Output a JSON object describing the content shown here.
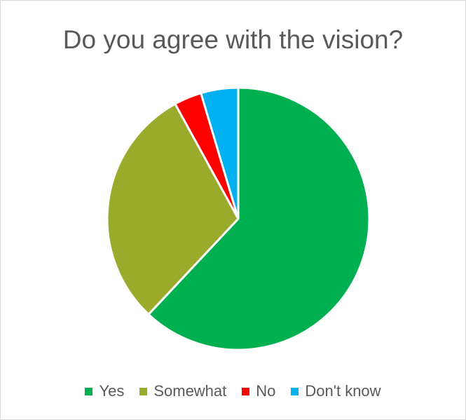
{
  "chart_data": {
    "type": "pie",
    "title": "Do you agree with the vision?",
    "categories": [
      "Yes",
      "Somewhat",
      "No",
      "Don't know"
    ],
    "values": [
      62,
      30,
      3.4,
      4.6
    ],
    "unit": "%",
    "colors": [
      "#00b050",
      "#9aaa2a",
      "#ff0000",
      "#00b0f0"
    ],
    "legend_position": "bottom",
    "start_angle_deg": 0,
    "direction": "clockwise"
  }
}
